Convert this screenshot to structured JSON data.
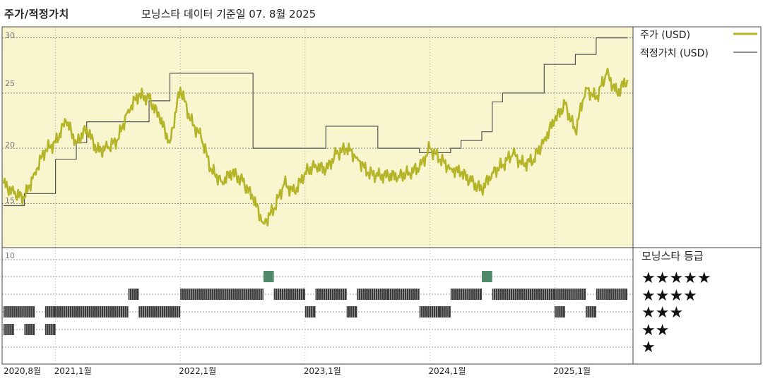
{
  "header": {
    "left_title": "주가/적정가치",
    "center_text": "모닝스타 데이터 기준일 07. 8월 2025"
  },
  "legend": {
    "price_label": "주가 (USD)",
    "fair_value_label": "적정가치 (USD)",
    "price_color": "#b5b52a",
    "fair_value_color": "#555555"
  },
  "rating_panel": {
    "title": "모닝스타 등급",
    "star_rows": [
      "★★★★★",
      "★★★★",
      "★★★",
      "★★",
      "★"
    ]
  },
  "colors": {
    "panel_bg": "#f8f5cf",
    "rating_bar": "#3a3a3a",
    "five_star_marker": "#4e8a6a"
  },
  "chart_data": [
    {
      "type": "line",
      "ylim": [
        11,
        31
      ],
      "ytick_labels": [
        "15",
        "20",
        "25",
        "30"
      ],
      "x_tick_labels": [
        "2020,8월",
        "2021,1월",
        "2022,1월",
        "2023,1월",
        "2024,1월",
        "2025,1월"
      ],
      "series": [
        {
          "name": "주가 (USD)",
          "x": [
            "2020-08",
            "2020-09",
            "2020-10",
            "2020-11",
            "2020-12",
            "2021-01",
            "2021-02",
            "2021-03",
            "2021-04",
            "2021-05",
            "2021-06",
            "2021-07",
            "2021-08",
            "2021-09",
            "2021-10",
            "2021-11",
            "2021-12",
            "2022-01",
            "2022-02",
            "2022-03",
            "2022-04",
            "2022-05",
            "2022-06",
            "2022-07",
            "2022-08",
            "2022-09",
            "2022-10",
            "2022-11",
            "2022-12",
            "2023-01",
            "2023-02",
            "2023-03",
            "2023-04",
            "2023-05",
            "2023-06",
            "2023-07",
            "2023-08",
            "2023-09",
            "2023-10",
            "2023-11",
            "2023-12",
            "2024-01",
            "2024-02",
            "2024-03",
            "2024-04",
            "2024-05",
            "2024-06",
            "2024-07",
            "2024-08",
            "2024-09",
            "2024-10",
            "2024-11",
            "2024-12",
            "2025-01",
            "2025-02",
            "2025-03",
            "2025-04",
            "2025-05",
            "2025-06",
            "2025-07",
            "2025-08"
          ],
          "values": [
            16.8,
            15.9,
            15.5,
            17.8,
            19.8,
            20.5,
            22.5,
            20.5,
            21.8,
            19.8,
            20.0,
            20.8,
            23.5,
            24.8,
            24.5,
            22.8,
            20.5,
            25.5,
            22.5,
            21.0,
            18.0,
            17.0,
            17.8,
            17.0,
            15.5,
            13.2,
            14.5,
            16.8,
            16.0,
            17.8,
            18.5,
            18.0,
            19.5,
            20.0,
            19.2,
            17.8,
            17.5,
            17.5,
            17.5,
            17.8,
            18.2,
            20.0,
            19.0,
            18.2,
            17.8,
            17.0,
            16.2,
            17.8,
            18.5,
            19.5,
            18.5,
            19.0,
            20.8,
            22.5,
            24.0,
            21.5,
            25.5,
            24.5,
            26.8,
            25.0,
            26.2
          ]
        },
        {
          "name": "적정가치 (USD)",
          "x": [
            "2020-08",
            "2020-10",
            "2021-01",
            "2021-03",
            "2021-04",
            "2021-10",
            "2021-12",
            "2022-08",
            "2023-03",
            "2023-08",
            "2023-12",
            "2024-03",
            "2024-04",
            "2024-06",
            "2024-07",
            "2024-08",
            "2024-12",
            "2025-03",
            "2025-05",
            "2025-06",
            "2025-08"
          ],
          "values": [
            14.8,
            15.9,
            19.0,
            20.5,
            22.4,
            24.3,
            26.8,
            20.0,
            22.0,
            20.0,
            19.6,
            20.0,
            20.7,
            21.5,
            24.2,
            25.0,
            27.6,
            28.5,
            30.0,
            30.0,
            30.0
          ]
        }
      ]
    },
    {
      "type": "bar",
      "ylim": [
        0,
        10
      ],
      "ytick_labels": [
        "10"
      ],
      "rating_segments": [
        {
          "start": "2020-08",
          "end": "2020-09",
          "stars": 2
        },
        {
          "start": "2020-08",
          "end": "2020-11",
          "stars": 3
        },
        {
          "start": "2020-10",
          "end": "2020-11",
          "stars": 2
        },
        {
          "start": "2020-12",
          "end": "2021-01",
          "stars": 3
        },
        {
          "start": "2020-12",
          "end": "2021-01",
          "stars": 2
        },
        {
          "start": "2021-01",
          "end": "2021-08",
          "stars": 3
        },
        {
          "start": "2021-08",
          "end": "2021-09",
          "stars": 4
        },
        {
          "start": "2021-09",
          "end": "2022-01",
          "stars": 3
        },
        {
          "start": "2022-01",
          "end": "2022-09",
          "stars": 4
        },
        {
          "start": "2022-09",
          "end": "2022-10",
          "stars": 5
        },
        {
          "start": "2022-10",
          "end": "2023-01",
          "stars": 4
        },
        {
          "start": "2023-01",
          "end": "2023-02",
          "stars": 3
        },
        {
          "start": "2023-02",
          "end": "2023-05",
          "stars": 4
        },
        {
          "start": "2023-05",
          "end": "2023-06",
          "stars": 3
        },
        {
          "start": "2023-06",
          "end": "2023-09",
          "stars": 4
        },
        {
          "start": "2023-09",
          "end": "2023-12",
          "stars": 4
        },
        {
          "start": "2023-12",
          "end": "2024-02",
          "stars": 3
        },
        {
          "start": "2024-02",
          "end": "2024-03",
          "stars": 3
        },
        {
          "start": "2024-03",
          "end": "2024-06",
          "stars": 4
        },
        {
          "start": "2024-06",
          "end": "2024-07",
          "stars": 5
        },
        {
          "start": "2024-07",
          "end": "2025-01",
          "stars": 4
        },
        {
          "start": "2025-01",
          "end": "2025-02",
          "stars": 3
        },
        {
          "start": "2025-01",
          "end": "2025-04",
          "stars": 4
        },
        {
          "start": "2025-04",
          "end": "2025-05",
          "stars": 3
        },
        {
          "start": "2025-05",
          "end": "2025-08",
          "stars": 4
        }
      ]
    }
  ]
}
